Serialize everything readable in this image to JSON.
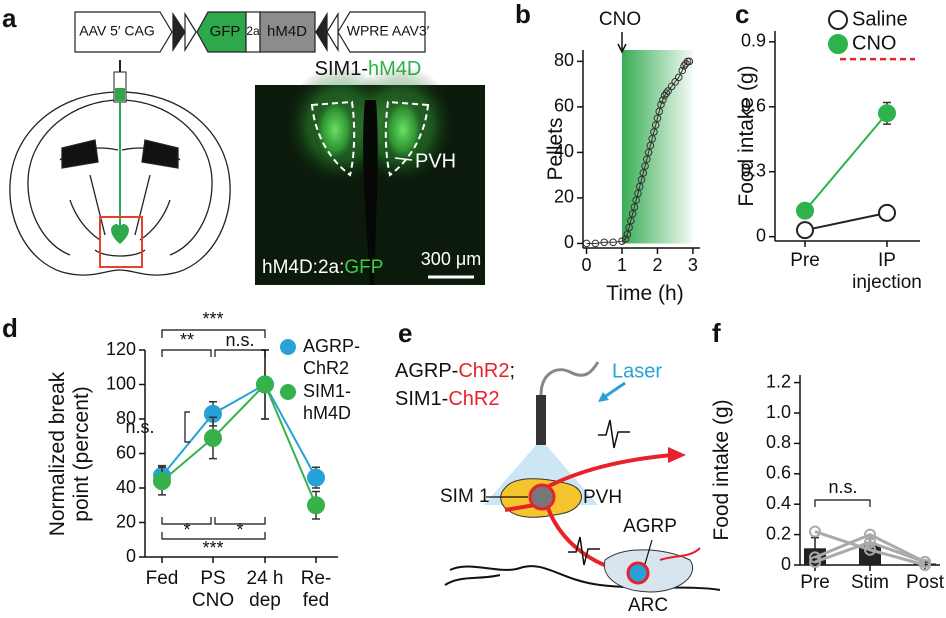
{
  "panel_labels": [
    "a",
    "b",
    "c",
    "d",
    "e",
    "f"
  ],
  "panel_a": {
    "construct": [
      "AAV 5′ CAG",
      "GFP",
      "2a",
      "hM4D",
      "WPRE AAV3′"
    ],
    "image_title": [
      "SIM1-",
      "hM4D"
    ],
    "region": "PVH",
    "image_caption": [
      "hM4D:2a:",
      "GFP"
    ],
    "scale_bar": "300 μm"
  },
  "panel_e": {
    "genotype_line1": [
      "AGRP-",
      "ChR2",
      ";"
    ],
    "genotype_line2": [
      "SIM1-",
      "ChR2"
    ],
    "laser": "Laser",
    "sim1": "SIM 1",
    "pvh": "PVH",
    "agrp": "AGRP",
    "arc": "ARC"
  },
  "chart_data": [
    {
      "type": "line",
      "xlabel": "Time (h)",
      "ylabel": "Pellets",
      "x": [
        0,
        0.25,
        0.5,
        0.75,
        1.0,
        1.1,
        1.15,
        1.2,
        1.25,
        1.3,
        1.35,
        1.4,
        1.45,
        1.5,
        1.55,
        1.6,
        1.65,
        1.7,
        1.75,
        1.8,
        1.85,
        1.9,
        1.95,
        2.0,
        2.05,
        2.1,
        2.15,
        2.2,
        2.25,
        2.3,
        2.4,
        2.5,
        2.6,
        2.7,
        2.75,
        2.8,
        2.85,
        2.9
      ],
      "values": [
        0,
        0,
        0.5,
        0.5,
        1,
        2,
        4,
        7,
        10,
        13,
        16,
        19,
        22,
        25,
        28,
        31,
        34,
        37,
        40,
        43,
        46,
        49,
        52,
        55,
        58,
        61,
        63,
        65,
        66,
        67,
        69,
        71,
        73,
        76,
        78,
        79,
        80,
        80
      ],
      "color": "#333333",
      "xlim": [
        -0.1,
        3.2
      ],
      "xticks": [
        0,
        1,
        2,
        3
      ],
      "ylim": [
        -2,
        85
      ],
      "yticks": [
        0,
        20,
        40,
        60,
        80
      ],
      "annotation": {
        "text": "CNO",
        "x": 1
      },
      "shade": {
        "x": [
          1,
          3
        ],
        "color": "#2ea84a"
      }
    },
    {
      "type": "line",
      "ylabel": "Food intake (g)",
      "categories": [
        "Pre",
        "IP injection"
      ],
      "series": [
        {
          "name": "Saline",
          "color": "#222222",
          "marker": "open",
          "values": [
            0.03,
            0.11
          ],
          "errors": [
            0.02,
            0.02
          ]
        },
        {
          "name": "CNO",
          "color": "#2eb34a",
          "marker": "filled",
          "values": [
            0.12,
            0.57
          ],
          "errors": [
            0.01,
            0.05
          ]
        }
      ],
      "ylim": [
        -0.02,
        0.95
      ],
      "yticks": [
        0,
        0.3,
        0.6,
        0.9
      ],
      "reference_line": {
        "value": 0.82,
        "color": "#e8222a"
      }
    },
    {
      "type": "line",
      "ylabel": "Normalized break point (percent)",
      "categories": [
        "Fed",
        "PS CNO",
        "24 h dep",
        "Re-fed"
      ],
      "series": [
        {
          "name": "AGRP-ChR2",
          "color": "#27a2d8",
          "values": [
            47,
            83,
            100,
            46
          ],
          "errors": [
            6,
            7,
            20,
            6
          ]
        },
        {
          "name": "SIM1-hM4D",
          "color": "#35b24a",
          "values": [
            44,
            69,
            100,
            30
          ],
          "errors": [
            8,
            12,
            20,
            8
          ]
        }
      ],
      "ylim": [
        0,
        120
      ],
      "yticks": [
        0,
        20,
        40,
        60,
        80,
        100,
        120
      ],
      "annotations": [
        "***",
        "**",
        "n.s.",
        "n.s.",
        "*",
        "*",
        "***"
      ]
    },
    {
      "type": "bar",
      "ylabel": "Food intake (g)",
      "categories": [
        "Pre",
        "Stim",
        "Post"
      ],
      "values": [
        0.11,
        0.13,
        0.01
      ],
      "errors": [
        0.07,
        0.06,
        0.01
      ],
      "color": "#222222",
      "points": [
        {
          "values": [
            0.22,
            0.1,
            0.0
          ]
        },
        {
          "values": [
            0.05,
            0.2,
            0.02
          ]
        },
        {
          "values": [
            0.02,
            0.15,
            0.02
          ]
        }
      ],
      "point_color": "#aaaaaa",
      "ylim": [
        0,
        1.25
      ],
      "yticks": [
        0,
        0.2,
        0.4,
        0.6,
        0.8,
        {
          "value": 1,
          "label": "1.0"
        },
        1.2
      ],
      "annotation": "n.s."
    }
  ]
}
